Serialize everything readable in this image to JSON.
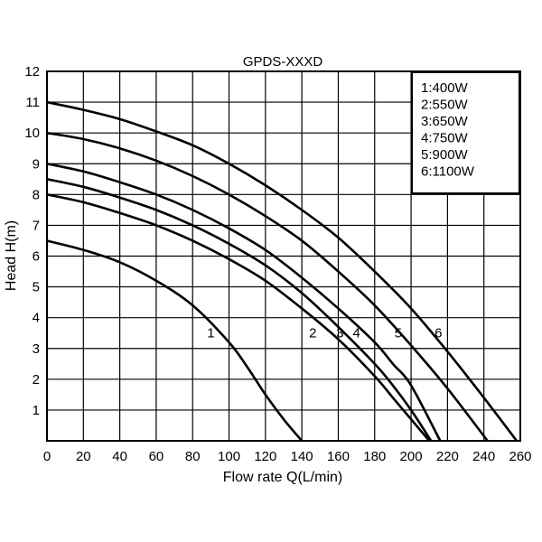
{
  "chart_data": {
    "type": "line",
    "title": "GPDS-XXXD",
    "xlabel": "Flow rate Q(L/min)",
    "ylabel": "Head H(m)",
    "xlim": [
      0,
      260
    ],
    "ylim": [
      0,
      12
    ],
    "xticks": [
      0,
      20,
      40,
      60,
      80,
      100,
      120,
      140,
      160,
      180,
      200,
      220,
      240,
      260
    ],
    "yticks": [
      1,
      2,
      3,
      4,
      5,
      6,
      7,
      8,
      9,
      10,
      11,
      12
    ],
    "grid": true,
    "legend_position": "top-right",
    "legend": [
      "1:400W",
      "2:550W",
      "3:650W",
      "4:750W",
      "5:900W",
      "6:1100W"
    ],
    "series": [
      {
        "label": "1",
        "label_at": [
          90,
          3.5
        ],
        "x": [
          0,
          20,
          40,
          60,
          80,
          100,
          110,
          120,
          130,
          140
        ],
        "y": [
          6.5,
          6.2,
          5.8,
          5.2,
          4.4,
          3.2,
          2.4,
          1.5,
          0.7,
          0
        ]
      },
      {
        "label": "2",
        "label_at": [
          146,
          3.5
        ],
        "x": [
          0,
          20,
          40,
          60,
          80,
          100,
          120,
          140,
          160,
          180,
          190,
          200,
          210
        ],
        "y": [
          8.0,
          7.75,
          7.4,
          7.0,
          6.5,
          5.9,
          5.2,
          4.3,
          3.3,
          2.1,
          1.4,
          0.7,
          0
        ]
      },
      {
        "label": "3",
        "label_at": [
          161,
          3.5
        ],
        "x": [
          0,
          20,
          40,
          60,
          80,
          100,
          120,
          140,
          160,
          180,
          190,
          200,
          211
        ],
        "y": [
          8.5,
          8.25,
          7.9,
          7.5,
          7.0,
          6.4,
          5.7,
          4.8,
          3.7,
          2.5,
          1.8,
          1.0,
          0
        ]
      },
      {
        "label": "4",
        "label_at": [
          170,
          3.5
        ],
        "x": [
          0,
          20,
          40,
          60,
          80,
          100,
          120,
          140,
          160,
          180,
          190,
          200,
          216
        ],
        "y": [
          9.0,
          8.75,
          8.4,
          8.0,
          7.5,
          6.9,
          6.2,
          5.3,
          4.3,
          3.2,
          2.5,
          1.8,
          0
        ]
      },
      {
        "label": "5",
        "label_at": [
          193,
          3.5
        ],
        "x": [
          0,
          20,
          40,
          60,
          80,
          100,
          120,
          140,
          160,
          180,
          200,
          220,
          242
        ],
        "y": [
          10.0,
          9.8,
          9.5,
          9.1,
          8.6,
          8.0,
          7.3,
          6.5,
          5.5,
          4.4,
          3.1,
          1.7,
          0
        ]
      },
      {
        "label": "6",
        "label_at": [
          215,
          3.5
        ],
        "x": [
          0,
          20,
          40,
          60,
          80,
          100,
          120,
          140,
          160,
          180,
          200,
          220,
          240,
          258
        ],
        "y": [
          11.0,
          10.75,
          10.45,
          10.05,
          9.6,
          9.0,
          8.3,
          7.5,
          6.6,
          5.5,
          4.3,
          2.9,
          1.4,
          0
        ]
      }
    ]
  }
}
